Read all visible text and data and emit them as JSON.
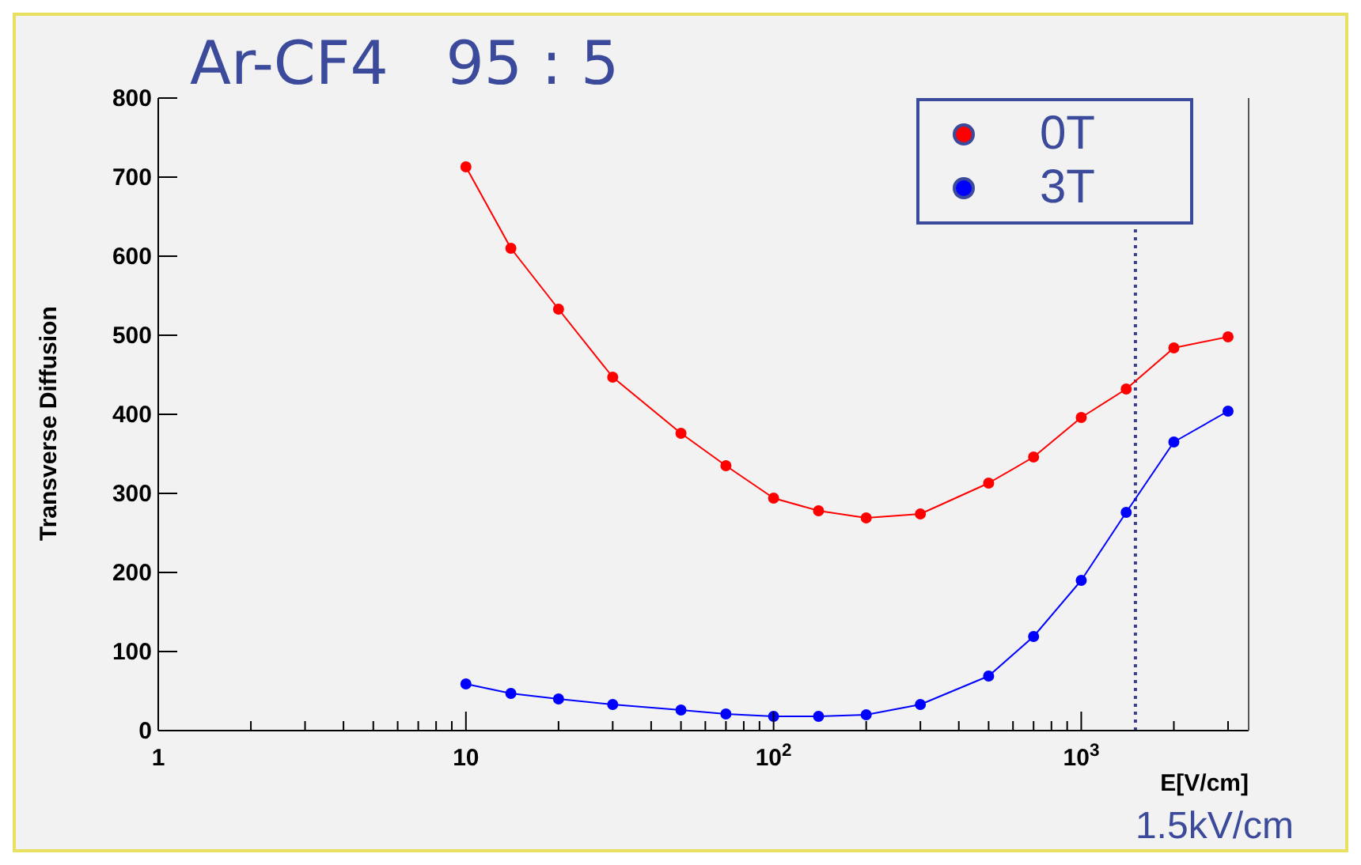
{
  "chart_data": {
    "type": "line",
    "title": "Ar-CF4   95 : 5",
    "xlabel": "E[V/cm]",
    "ylabel": "Transverse Diffusion",
    "x": [
      10,
      14,
      20,
      30,
      50,
      70,
      100,
      140,
      200,
      300,
      500,
      700,
      1000,
      1400,
      2000,
      3000
    ],
    "series": [
      {
        "name": "0T",
        "color": "#ff0000",
        "values": [
          713,
          610,
          533,
          447,
          376,
          335,
          294,
          278,
          269,
          274,
          313,
          346,
          396,
          432,
          484,
          498
        ]
      },
      {
        "name": "3T",
        "color": "#0000ff",
        "values": [
          59,
          47,
          40,
          33,
          26,
          21,
          18,
          18,
          20,
          33,
          69,
          119,
          190,
          276,
          365,
          404
        ]
      }
    ],
    "log": "x",
    "xlim": [
      1,
      3500
    ],
    "xticks": [
      1,
      {
        "value": 2,
        "label": null
      },
      {
        "value": 3,
        "label": null
      },
      {
        "value": 4,
        "label": null
      },
      {
        "value": 5,
        "label": null
      },
      {
        "value": 6,
        "label": null
      },
      {
        "value": 7,
        "label": null
      },
      {
        "value": 8,
        "label": null
      },
      {
        "value": 9,
        "label": null
      },
      10,
      {
        "value": 20,
        "label": null
      },
      {
        "value": 30,
        "label": null
      },
      {
        "value": 40,
        "label": null
      },
      {
        "value": 50,
        "label": null
      },
      {
        "value": 60,
        "label": null
      },
      {
        "value": 70,
        "label": null
      },
      {
        "value": 80,
        "label": null
      },
      {
        "value": 90,
        "label": null
      },
      {
        "value": 100,
        "label": "10$^{2}$"
      },
      {
        "value": 200,
        "label": null
      },
      {
        "value": 300,
        "label": null
      },
      {
        "value": 400,
        "label": null
      },
      {
        "value": 500,
        "label": null
      },
      {
        "value": 600,
        "label": null
      },
      {
        "value": 700,
        "label": null
      },
      {
        "value": 800,
        "label": null
      },
      {
        "value": 900,
        "label": null
      },
      {
        "value": 1000,
        "label": "10$^{3}$"
      },
      {
        "value": 2000,
        "label": null
      },
      {
        "value": 3000,
        "label": null
      }
    ],
    "ylim": [
      0,
      800
    ],
    "yticks": [
      0,
      100,
      200,
      300,
      400,
      500,
      600,
      700,
      800
    ],
    "ref_lines": [
      {
        "axis": "x",
        "value": 1500,
        "label": "1.5kV/cm",
        "color": "#3b3f8f",
        "line_style": "dotted"
      }
    ],
    "grid": false,
    "legend": "top right",
    "marker": "circle",
    "line_style": "solid"
  }
}
